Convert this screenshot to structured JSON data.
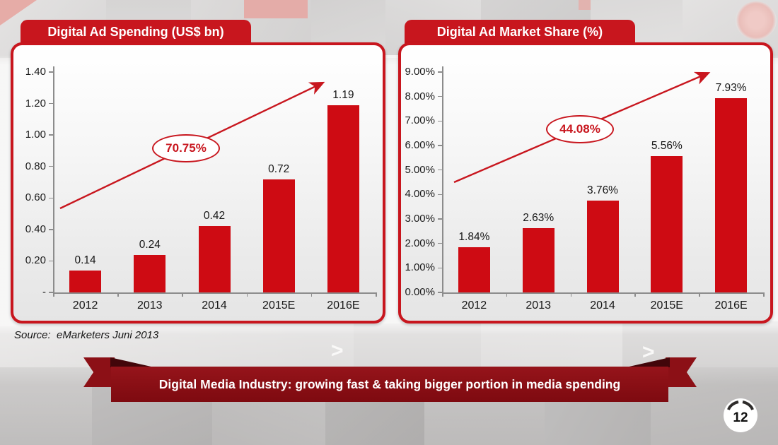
{
  "slide": {
    "source_note": "Source:  eMarketers Juni 2013",
    "banner_text": "Digital Media Industry: growing fast & taking bigger portion in media spending",
    "page_number": "12"
  },
  "colors": {
    "accent_red": "#C8161E",
    "bar_red": "#CE0B13",
    "banner_red": "#8C1016",
    "banner_fold": "#42060A"
  },
  "chart_data": [
    {
      "type": "bar",
      "title": "Digital Ad Spending (US$ bn)",
      "categories": [
        "2012",
        "2013",
        "2014",
        "2015E",
        "2016E"
      ],
      "values": [
        0.14,
        0.24,
        0.42,
        0.72,
        1.19
      ],
      "value_labels": [
        "0.14",
        "0.24",
        "0.42",
        "0.72",
        "1.19"
      ],
      "y_ticks": [
        "1.40",
        "1.20",
        "1.00",
        "0.80",
        "0.60",
        "0.40",
        "0.20",
        "-"
      ],
      "ylim": [
        0,
        1.4
      ],
      "grid": false,
      "legend": "none",
      "annotation": "70.75%"
    },
    {
      "type": "bar",
      "title": "Digital Ad Market Share (%)",
      "categories": [
        "2012",
        "2013",
        "2014",
        "2015E",
        "2016E"
      ],
      "values": [
        1.84,
        2.63,
        3.76,
        5.56,
        7.93
      ],
      "value_labels": [
        "1.84%",
        "2.63%",
        "3.76%",
        "5.56%",
        "7.93%"
      ],
      "y_ticks": [
        "9.00%",
        "8.00%",
        "7.00%",
        "6.00%",
        "5.00%",
        "4.00%",
        "3.00%",
        "2.00%",
        "1.00%",
        "0.00%"
      ],
      "ylim": [
        0,
        9
      ],
      "grid": false,
      "legend": "none",
      "annotation": "44.08%"
    }
  ]
}
